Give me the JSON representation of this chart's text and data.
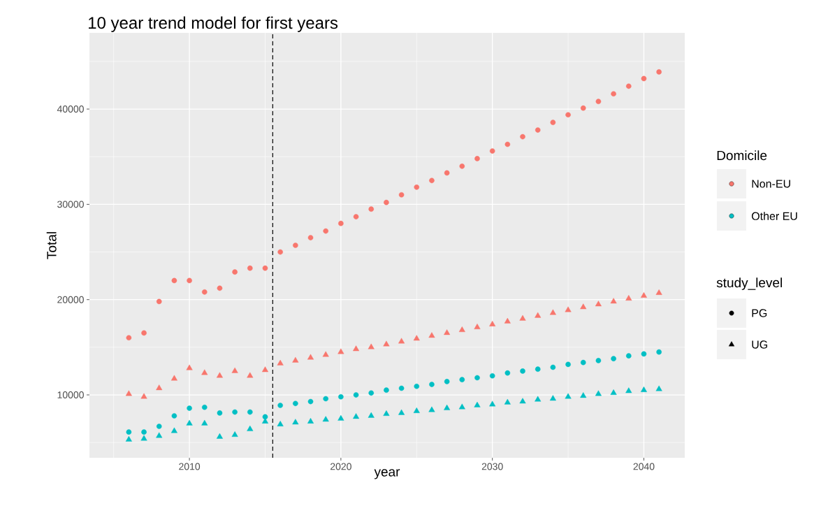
{
  "chart_data": {
    "type": "scatter",
    "title": "10 year trend model for first years",
    "xlabel": "year",
    "ylabel": "Total",
    "x": [
      2006,
      2007,
      2008,
      2009,
      2010,
      2011,
      2012,
      2013,
      2014,
      2015,
      2016,
      2017,
      2018,
      2019,
      2020,
      2021,
      2022,
      2023,
      2024,
      2025,
      2026,
      2027,
      2028,
      2029,
      2030,
      2031,
      2032,
      2033,
      2034,
      2035,
      2036,
      2037,
      2038,
      2039,
      2040,
      2041
    ],
    "series": [
      {
        "name": "Non-EU",
        "color": "#f8766d",
        "marker": "circle",
        "values": [
          16000,
          16500,
          19800,
          22000,
          22000,
          20800,
          21200,
          22900,
          23300,
          23300,
          25000,
          25700,
          26500,
          27200,
          28000,
          28700,
          29500,
          30200,
          31000,
          31800,
          32500,
          33300,
          34000,
          34800,
          35600,
          36300,
          37100,
          37800,
          38600,
          39400,
          40100,
          40800,
          41600,
          42400,
          43200,
          43900
        ]
      },
      {
        "color": "#f8766d",
        "marker": "triangle",
        "values": [
          10100,
          9800,
          10700,
          11700,
          12800,
          12300,
          12000,
          12500,
          12000,
          12600,
          13300,
          13600,
          13900,
          14200,
          14500,
          14800,
          15000,
          15300,
          15600,
          15900,
          16200,
          16500,
          16800,
          17100,
          17400,
          17700,
          18000,
          18300,
          18600,
          18900,
          19200,
          19500,
          19800,
          20100,
          20400,
          20700
        ]
      },
      {
        "name": "Other EU",
        "color": "#00bfc4",
        "marker": "circle",
        "values": [
          6100,
          6100,
          6700,
          7800,
          8600,
          8700,
          8100,
          8200,
          8200,
          7700,
          8900,
          9100,
          9300,
          9600,
          9800,
          10000,
          10200,
          10500,
          10700,
          10900,
          11100,
          11400,
          11600,
          11800,
          12000,
          12300,
          12500,
          12700,
          12900,
          13200,
          13400,
          13600,
          13800,
          14100,
          14300,
          14500
        ]
      },
      {
        "color": "#00bfc4",
        "marker": "triangle",
        "values": [
          5300,
          5400,
          5700,
          6200,
          7000,
          7000,
          5600,
          5800,
          6400,
          7200,
          6900,
          7100,
          7200,
          7400,
          7500,
          7700,
          7800,
          8000,
          8100,
          8300,
          8400,
          8600,
          8700,
          8900,
          9000,
          9200,
          9300,
          9500,
          9600,
          9800,
          9900,
          10100,
          10200,
          10400,
          10500,
          10600
        ]
      }
    ],
    "xlim": [
      2003.4,
      2042.7
    ],
    "ylim": [
      3400,
      48000
    ],
    "xticks": [
      2010,
      2020,
      2030,
      2040
    ],
    "yticks": [
      10000,
      20000,
      30000,
      40000
    ],
    "ref_lines": [
      {
        "axis": "x",
        "value": 2015.5,
        "color": "#000000",
        "line_style": "dashed"
      }
    ],
    "grid": true,
    "legend": "right",
    "legend_title": "Domicile",
    "annotations": [
      "study_level",
      "PG",
      "UG"
    ]
  }
}
